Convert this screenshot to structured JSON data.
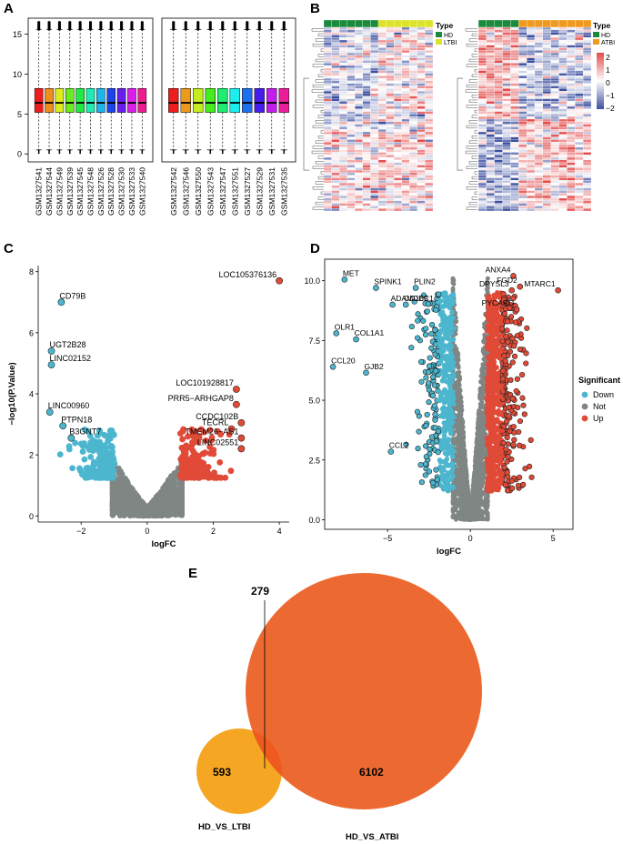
{
  "panels": {
    "a": {
      "letter": "A"
    },
    "b": {
      "letter": "B"
    },
    "c": {
      "letter": "C"
    },
    "d": {
      "letter": "D"
    },
    "e": {
      "letter": "E"
    }
  },
  "colors": {
    "down": "#4cb6cf",
    "not": "#7f8684",
    "up": "#e04a37",
    "hd": "#1a8a3d",
    "ltbi": "#dde22b",
    "atbi": "#ef9a1f",
    "heat_high": "#e34b4b",
    "heat_low": "#3b4fa0",
    "venn_ltbi": "#f5a623",
    "venn_atbi": "#ec6a32"
  },
  "chart_data": [
    {
      "id": "A",
      "type": "box",
      "y_ticks": [
        0,
        5,
        10,
        15
      ],
      "ylim": [
        -1,
        17
      ],
      "groups": [
        {
          "samples": [
            "GSM1327541",
            "GSM1327544",
            "GSM1327549",
            "GSM1327539",
            "GSM1327545",
            "GSM1327548",
            "GSM1327526",
            "GSM1327528",
            "GSM1327530",
            "GSM1327533",
            "GSM1327540"
          ],
          "box": {
            "q1": 5.2,
            "median": 6.4,
            "q3": 8.2,
            "whisker_low": 0.5,
            "whisker_high": 15.6,
            "outlier_max": 16.5
          }
        },
        {
          "samples": [
            "GSM1327542",
            "GSM1327546",
            "GSM1327550",
            "GSM1327543",
            "GSM1327547",
            "GSM1327551",
            "GSM1327527",
            "GSM1327529",
            "GSM1327531",
            "GSM1327535"
          ],
          "box": {
            "q1": 5.2,
            "median": 6.4,
            "q3": 8.2,
            "whisker_low": 0.5,
            "whisker_high": 15.6,
            "outlier_max": 16.5
          }
        }
      ]
    },
    {
      "id": "B",
      "type": "heatmap",
      "legend_title": "Type",
      "left": {
        "groups": [
          "HD",
          "LTBI"
        ],
        "columns": [
          7,
          7
        ]
      },
      "right": {
        "groups": [
          "HD",
          "ATBI"
        ],
        "columns": [
          5,
          9
        ]
      },
      "scale_ticks": [
        2,
        1,
        0,
        -1,
        -2
      ]
    },
    {
      "id": "C",
      "type": "scatter",
      "xlabel": "logFC",
      "ylabel": "−log10(P.Value)",
      "x_ticks": [
        -2,
        0,
        2,
        4
      ],
      "y_ticks": [
        0,
        2,
        4,
        6,
        8
      ],
      "xlim": [
        -3.3,
        4.3
      ],
      "ylim": [
        -0.2,
        8.2
      ],
      "labels": [
        {
          "text": "LOC105376136",
          "x": 4.0,
          "y": 7.7
        },
        {
          "text": "CD79B",
          "x": -2.6,
          "y": 7.0
        },
        {
          "text": "UGT2B28",
          "x": -2.9,
          "y": 5.4
        },
        {
          "text": "LINC02152",
          "x": -2.9,
          "y": 4.95
        },
        {
          "text": "LOC101928817",
          "x": 2.7,
          "y": 4.15
        },
        {
          "text": "LINC00960",
          "x": -2.95,
          "y": 3.4
        },
        {
          "text": "PRR5−ARHGAP8",
          "x": 2.7,
          "y": 3.65
        },
        {
          "text": "PTPN18",
          "x": -2.55,
          "y": 2.95
        },
        {
          "text": "CCDC102B",
          "x": 2.85,
          "y": 3.05
        },
        {
          "text": "TECRL",
          "x": 2.55,
          "y": 2.85
        },
        {
          "text": "TMEM26−AS1",
          "x": 2.85,
          "y": 2.55
        },
        {
          "text": "B3GNT7",
          "x": -2.3,
          "y": 2.55
        },
        {
          "text": "LINC02551",
          "x": 2.85,
          "y": 2.2
        }
      ]
    },
    {
      "id": "D",
      "type": "scatter",
      "xlabel": "logFC",
      "x_ticks": [
        -5,
        0,
        5
      ],
      "y_ticks": [
        0.0,
        2.5,
        5.0,
        7.5,
        10.0
      ],
      "xlim": [
        -8.8,
        6.2
      ],
      "ylim": [
        -0.4,
        10.9
      ],
      "legend_title": "Significant",
      "legend_items": [
        "Down",
        "Not",
        "Up"
      ],
      "labels": [
        {
          "text": "MET",
          "x": -7.6,
          "y": 10.05
        },
        {
          "text": "SPINK1",
          "x": -5.7,
          "y": 9.7
        },
        {
          "text": "PLIN2",
          "x": -3.3,
          "y": 9.7
        },
        {
          "text": "ANXA4",
          "x": 2.6,
          "y": 10.2
        },
        {
          "text": "FGD2",
          "x": 3.0,
          "y": 9.75
        },
        {
          "text": "DPYSL3",
          "x": 2.5,
          "y": 9.6
        },
        {
          "text": "MTARC1",
          "x": 5.3,
          "y": 9.6
        },
        {
          "text": "ADAMDEC1",
          "x": -4.7,
          "y": 9.0
        },
        {
          "text": "CD109",
          "x": -3.9,
          "y": 9.0
        },
        {
          "text": "PYCARD",
          "x": 2.8,
          "y": 8.8
        },
        {
          "text": "OLR1",
          "x": -8.1,
          "y": 7.8
        },
        {
          "text": "COL1A1",
          "x": -6.9,
          "y": 7.55
        },
        {
          "text": "GJB2",
          "x": -6.3,
          "y": 6.15
        },
        {
          "text": "CCL20",
          "x": -8.3,
          "y": 6.4
        },
        {
          "text": "CCL2",
          "x": -4.8,
          "y": 2.85
        }
      ]
    },
    {
      "id": "E",
      "type": "venn",
      "sets": [
        {
          "name": "HD_VS_LTBI",
          "only": 593
        },
        {
          "name": "HD_VS_ATBI",
          "only": 6102
        }
      ],
      "intersection": 279
    }
  ]
}
